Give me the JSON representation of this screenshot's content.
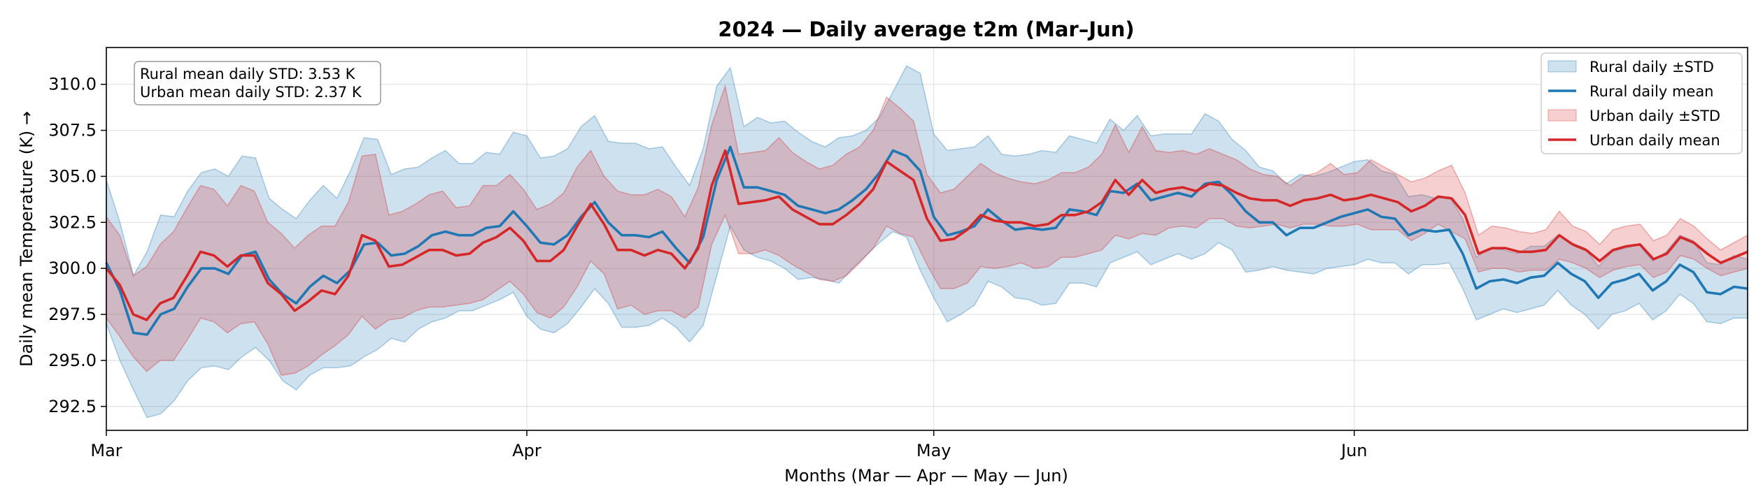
{
  "chart_data": {
    "type": "line",
    "title": "2024 — Daily average t2m (Mar–Jun)",
    "xlabel": "Months (Mar — Apr — May — Jun)",
    "ylabel": "Daily mean Temperature (K) →",
    "ylim": [
      291.2,
      312.0
    ],
    "yticks": [
      "292.5",
      "295.0",
      "297.5",
      "300.0",
      "302.5",
      "305.0",
      "307.5",
      "310.0"
    ],
    "x_range_days": [
      0,
      121
    ],
    "x_start": "2024-03-01",
    "x_end": "2024-06-30",
    "xticks": [
      {
        "label": "Mar",
        "date": "2024-03-01"
      },
      {
        "label": "Apr",
        "date": "2024-04-01"
      },
      {
        "label": "May",
        "date": "2024-05-01"
      },
      {
        "label": "Jun",
        "date": "2024-06-01"
      }
    ],
    "grid": true,
    "legend_position": "top-right",
    "annotation_lines": [
      "Rural mean daily STD: 3.53 K",
      "Urban mean daily STD: 2.37 K"
    ],
    "series": [
      {
        "name": "Rural daily mean",
        "band_name": "Rural daily ±STD",
        "color": "#1f77b4",
        "band_color": "#1f77b4",
        "mean": [
          300.3,
          298.8,
          296.5,
          296.4,
          297.5,
          297.8,
          299.0,
          300.0,
          300.0,
          299.7,
          300.7,
          300.9,
          299.4,
          298.6,
          298.1,
          299.0,
          299.6,
          299.2,
          299.9,
          301.3,
          301.4,
          300.7,
          300.8,
          301.2,
          301.8,
          302.0,
          301.8,
          301.8,
          302.2,
          302.3,
          303.1,
          302.3,
          301.4,
          301.3,
          301.8,
          302.8,
          303.6,
          302.5,
          301.8,
          301.8,
          301.7,
          302.0,
          301.1,
          300.3,
          301.7,
          304.8,
          306.6,
          304.4,
          304.4,
          304.2,
          304.0,
          303.4,
          303.2,
          303.0,
          303.2,
          303.7,
          304.3,
          305.2,
          306.4,
          306.1,
          305.3,
          302.8,
          301.8,
          302.0,
          302.3,
          303.2,
          302.6,
          302.1,
          302.2,
          302.1,
          302.2,
          303.2,
          303.1,
          302.9,
          304.2,
          304.1,
          304.6,
          303.7,
          303.9,
          304.1,
          303.9,
          304.6,
          304.7,
          304.0,
          303.1,
          302.5,
          302.5,
          301.8,
          302.2,
          302.2,
          302.5,
          302.8,
          303.0,
          303.2,
          302.8,
          302.7,
          301.8,
          302.1,
          302.0,
          302.1,
          300.8,
          298.9,
          299.3,
          299.4,
          299.2,
          299.5,
          299.6,
          300.3,
          299.7,
          299.3,
          298.4,
          299.2,
          299.4,
          299.7,
          298.8,
          299.3,
          300.2,
          299.8,
          298.7,
          298.6,
          299.0,
          298.9
        ],
        "std_upper": [
          304.8,
          302.5,
          299.6,
          300.9,
          302.9,
          302.8,
          304.2,
          305.2,
          305.4,
          305.0,
          306.1,
          306.0,
          303.8,
          303.2,
          302.7,
          303.7,
          304.5,
          303.8,
          305.3,
          307.1,
          307.0,
          305.1,
          305.4,
          305.5,
          306.0,
          306.4,
          305.7,
          305.7,
          306.3,
          306.2,
          307.4,
          307.2,
          306.0,
          306.1,
          306.5,
          307.7,
          308.3,
          306.9,
          306.8,
          306.8,
          306.5,
          306.6,
          305.5,
          304.5,
          306.5,
          309.9,
          310.9,
          307.7,
          308.2,
          307.9,
          308.0,
          307.4,
          306.9,
          306.6,
          307.1,
          307.2,
          307.5,
          308.2,
          309.6,
          311.0,
          310.6,
          307.3,
          306.4,
          306.5,
          306.6,
          307.2,
          306.2,
          306.1,
          306.2,
          306.4,
          306.3,
          307.2,
          307.0,
          306.8,
          308.1,
          307.5,
          308.3,
          307.2,
          307.3,
          307.3,
          307.3,
          308.4,
          308.0,
          307.0,
          306.4,
          305.5,
          305.3,
          304.6,
          305.1,
          305.0,
          305.2,
          305.5,
          305.8,
          305.9,
          305.3,
          305.1,
          303.9,
          304.0,
          303.8,
          303.9,
          302.7,
          300.6,
          301.1,
          301.0,
          300.8,
          301.2,
          301.2,
          301.8,
          301.4,
          301.1,
          300.1,
          300.9,
          301.1,
          301.3,
          300.4,
          300.9,
          301.8,
          301.5,
          300.3,
          300.2,
          300.7,
          300.5
        ],
        "std_lower": [
          297.0,
          295.0,
          293.4,
          291.9,
          292.1,
          292.8,
          293.9,
          294.6,
          294.7,
          294.5,
          295.2,
          295.7,
          295.0,
          293.9,
          293.4,
          294.2,
          294.6,
          294.6,
          294.7,
          295.2,
          295.6,
          296.2,
          296.0,
          296.7,
          297.1,
          297.3,
          297.7,
          297.7,
          298.0,
          298.3,
          298.7,
          297.4,
          296.7,
          296.5,
          297.0,
          297.9,
          298.9,
          298.1,
          296.8,
          296.8,
          296.9,
          297.3,
          296.8,
          296.0,
          296.9,
          299.6,
          302.3,
          301.0,
          300.6,
          300.4,
          300.0,
          299.4,
          299.5,
          299.4,
          299.2,
          300.0,
          300.7,
          301.4,
          302.0,
          301.7,
          299.9,
          298.4,
          297.1,
          297.5,
          298.0,
          299.3,
          299.0,
          298.4,
          298.3,
          298.0,
          298.1,
          299.2,
          299.2,
          299.0,
          300.3,
          300.6,
          300.9,
          300.2,
          300.5,
          300.8,
          300.5,
          300.8,
          301.4,
          301.0,
          299.8,
          299.9,
          300.1,
          299.9,
          299.8,
          299.7,
          300.0,
          300.1,
          300.2,
          300.5,
          300.3,
          300.3,
          299.7,
          300.2,
          300.2,
          300.3,
          298.9,
          297.2,
          297.5,
          297.8,
          297.6,
          297.8,
          298.0,
          298.8,
          298.0,
          297.5,
          296.7,
          297.5,
          297.7,
          298.1,
          297.2,
          297.7,
          298.6,
          298.1,
          297.1,
          297.0,
          297.3,
          297.3
        ]
      },
      {
        "name": "Urban daily mean",
        "band_name": "Urban daily ±STD",
        "color": "#d62728",
        "band_color": "#d62728",
        "mean": [
          300.0,
          299.1,
          297.5,
          297.2,
          298.1,
          298.4,
          299.6,
          300.9,
          300.7,
          300.1,
          300.7,
          300.7,
          299.2,
          298.6,
          297.7,
          298.2,
          298.8,
          298.6,
          299.6,
          301.8,
          301.5,
          300.1,
          300.2,
          300.6,
          301.0,
          301.0,
          300.7,
          300.8,
          301.4,
          301.7,
          302.2,
          301.5,
          300.4,
          300.4,
          301.0,
          302.3,
          303.5,
          302.4,
          301.0,
          301.0,
          300.7,
          301.0,
          300.8,
          300.0,
          301.1,
          304.5,
          306.4,
          303.5,
          303.6,
          303.7,
          303.9,
          303.2,
          302.8,
          302.4,
          302.4,
          302.9,
          303.5,
          304.3,
          305.8,
          305.3,
          304.8,
          302.7,
          301.5,
          301.6,
          302.1,
          302.9,
          302.6,
          302.5,
          302.5,
          302.3,
          302.4,
          302.9,
          302.9,
          303.1,
          303.6,
          304.8,
          304.0,
          304.8,
          304.1,
          304.3,
          304.4,
          304.2,
          304.6,
          304.5,
          304.1,
          303.8,
          303.7,
          303.7,
          303.4,
          303.7,
          303.8,
          304.0,
          303.7,
          303.8,
          304.0,
          303.8,
          303.6,
          303.1,
          303.4,
          303.9,
          303.8,
          302.9,
          300.8,
          301.1,
          301.1,
          300.9,
          300.9,
          301.0,
          301.8,
          301.3,
          301.0,
          300.4,
          301.0,
          301.2,
          301.3,
          300.5,
          300.8,
          301.7,
          301.4,
          300.8,
          300.3,
          300.6,
          300.9
        ],
        "std_upper": [
          302.8,
          301.8,
          299.6,
          300.1,
          301.3,
          302.0,
          303.3,
          304.5,
          304.3,
          303.4,
          304.5,
          304.2,
          302.5,
          301.9,
          301.1,
          301.8,
          302.3,
          302.3,
          303.6,
          306.1,
          306.2,
          302.9,
          303.1,
          303.5,
          304.0,
          304.2,
          303.3,
          303.4,
          304.5,
          304.5,
          305.1,
          304.3,
          303.2,
          303.5,
          304.1,
          305.5,
          306.4,
          305.0,
          304.2,
          304.0,
          304.0,
          304.3,
          303.9,
          302.8,
          304.4,
          307.8,
          309.9,
          306.2,
          306.3,
          306.4,
          307.1,
          306.3,
          305.8,
          305.4,
          305.6,
          306.2,
          306.6,
          307.5,
          309.3,
          308.7,
          308.0,
          305.1,
          304.1,
          304.3,
          305.0,
          305.7,
          305.2,
          304.9,
          304.7,
          304.6,
          304.8,
          305.2,
          305.2,
          305.5,
          306.2,
          307.8,
          306.3,
          307.7,
          306.4,
          306.3,
          306.4,
          306.2,
          306.5,
          306.2,
          305.9,
          305.4,
          305.1,
          305.0,
          304.5,
          305.0,
          305.2,
          305.7,
          305.1,
          305.2,
          305.9,
          305.5,
          305.1,
          304.7,
          304.9,
          305.3,
          305.6,
          304.1,
          301.8,
          302.3,
          302.2,
          302.0,
          301.9,
          302.1,
          303.1,
          302.3,
          302.0,
          301.3,
          302.1,
          302.3,
          302.4,
          301.5,
          301.8,
          302.7,
          302.3,
          301.6,
          301.0,
          301.4,
          301.8
        ],
        "std_lower": [
          297.3,
          296.3,
          295.2,
          294.4,
          295.0,
          295.0,
          296.1,
          297.3,
          297.1,
          296.5,
          297.0,
          297.1,
          295.9,
          294.2,
          294.3,
          294.7,
          295.3,
          295.8,
          296.4,
          297.4,
          296.7,
          297.2,
          297.3,
          297.7,
          297.9,
          297.9,
          298.0,
          298.1,
          298.3,
          298.8,
          299.3,
          298.6,
          297.6,
          297.3,
          297.9,
          299.0,
          300.4,
          299.7,
          297.8,
          298.0,
          297.5,
          297.7,
          297.7,
          297.3,
          297.9,
          301.3,
          302.9,
          300.8,
          300.8,
          301.0,
          300.7,
          300.2,
          299.8,
          299.4,
          299.3,
          299.6,
          300.3,
          301.1,
          302.3,
          301.9,
          301.7,
          300.2,
          298.9,
          298.9,
          299.2,
          300.1,
          300.0,
          300.1,
          300.3,
          300.0,
          300.1,
          300.6,
          300.6,
          300.8,
          301.0,
          301.8,
          301.6,
          301.9,
          301.8,
          302.2,
          302.3,
          302.2,
          302.7,
          302.7,
          302.3,
          302.2,
          302.3,
          302.4,
          302.2,
          302.4,
          302.4,
          302.3,
          302.3,
          302.4,
          302.1,
          302.1,
          302.1,
          301.5,
          301.9,
          302.4,
          302.0,
          301.6,
          299.8,
          300.0,
          300.0,
          299.8,
          299.9,
          299.9,
          300.5,
          300.3,
          300.0,
          299.5,
          299.9,
          300.1,
          300.2,
          299.5,
          299.8,
          300.7,
          300.5,
          300.0,
          299.6,
          299.8,
          300.0
        ]
      }
    ]
  }
}
